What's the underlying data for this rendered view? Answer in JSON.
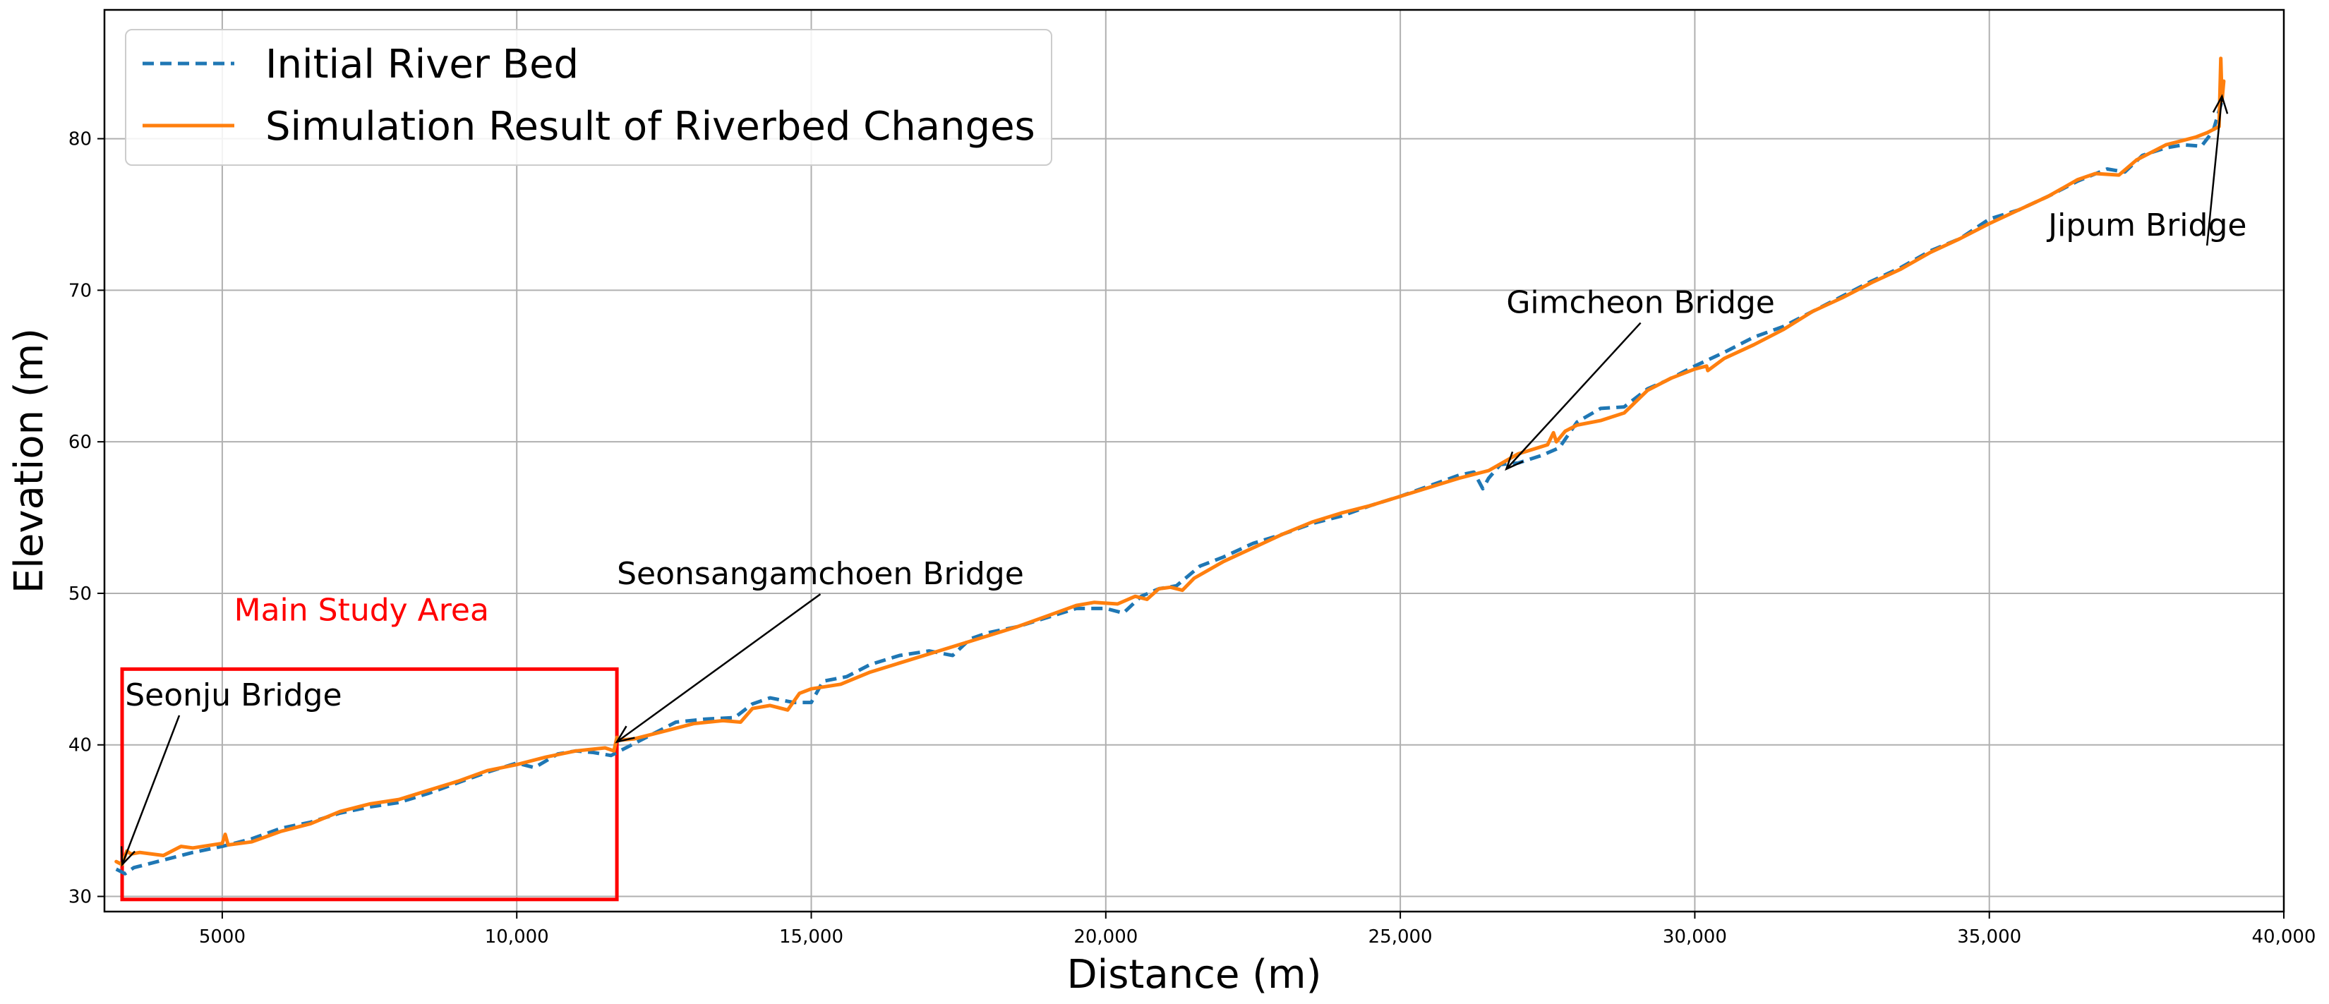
{
  "chart_data": {
    "type": "line",
    "title": "",
    "xlabel": "Distance (m)",
    "ylabel": "Elevation (m)",
    "xlim": [
      3000,
      40000
    ],
    "ylim": [
      29,
      88.5
    ],
    "xticks": [
      5000,
      10000,
      15000,
      20000,
      25000,
      30000,
      35000,
      40000
    ],
    "xtick_labels": [
      "5000",
      "10,000",
      "15,000",
      "20,000",
      "25,000",
      "30,000",
      "35,000",
      "40,000"
    ],
    "yticks": [
      30,
      40,
      50,
      60,
      70,
      80
    ],
    "ytick_labels": [
      "30",
      "40",
      "50",
      "60",
      "70",
      "80"
    ],
    "grid": true,
    "legend_position": "top-left",
    "series": [
      {
        "name": "Initial River Bed",
        "color": "#1f77b4",
        "style": "dashed",
        "x": [
          3200,
          3350,
          3500,
          4000,
          4500,
          5000,
          5500,
          6000,
          6500,
          7000,
          7500,
          8000,
          8500,
          9000,
          9500,
          10000,
          10300,
          10700,
          11000,
          11300,
          11600,
          11800,
          12200,
          12700,
          13200,
          13700,
          14000,
          14300,
          14700,
          15000,
          15200,
          15600,
          16000,
          16500,
          17000,
          17400,
          17700,
          18000,
          18500,
          19000,
          19500,
          20000,
          20300,
          20600,
          20900,
          21200,
          21600,
          22000,
          22500,
          23000,
          23500,
          24000,
          24500,
          25000,
          25500,
          26000,
          26250,
          26400,
          26500,
          26700,
          27000,
          27400,
          27700,
          28000,
          28400,
          28800,
          29200,
          29500,
          30000,
          30500,
          31000,
          31500,
          32000,
          32500,
          33000,
          33500,
          34000,
          34500,
          35000,
          35500,
          36000,
          36500,
          37000,
          37300,
          37600,
          38000,
          38300,
          38600,
          38800,
          38950
        ],
        "y": [
          31.8,
          31.5,
          31.9,
          32.4,
          32.9,
          33.3,
          33.8,
          34.5,
          34.9,
          35.5,
          35.9,
          36.2,
          36.8,
          37.5,
          38.2,
          38.8,
          38.5,
          39.4,
          39.6,
          39.5,
          39.3,
          39.7,
          40.5,
          41.5,
          41.7,
          41.8,
          42.7,
          43.1,
          42.8,
          42.8,
          44.2,
          44.5,
          45.3,
          45.9,
          46.2,
          45.9,
          47.0,
          47.4,
          47.8,
          48.4,
          49.0,
          49.0,
          48.7,
          49.8,
          50.3,
          50.5,
          51.8,
          52.4,
          53.3,
          53.9,
          54.6,
          55.1,
          55.8,
          56.4,
          57.1,
          57.8,
          58.0,
          56.9,
          57.6,
          58.5,
          58.6,
          59.1,
          59.6,
          61.3,
          62.2,
          62.3,
          63.5,
          64.0,
          65.0,
          65.9,
          66.9,
          67.6,
          68.6,
          69.6,
          70.6,
          71.5,
          72.6,
          73.4,
          74.7,
          75.3,
          76.2,
          77.2,
          78.0,
          77.8,
          78.9,
          79.4,
          79.6,
          79.5,
          80.5,
          82.5
        ]
      },
      {
        "name": "Simulation Result of Riverbed Changes",
        "color": "#ff7f0e",
        "style": "solid",
        "x": [
          3200,
          3300,
          3380,
          3450,
          3600,
          4000,
          4300,
          4500,
          5000,
          5050,
          5100,
          5500,
          6000,
          6500,
          7000,
          7500,
          8000,
          8500,
          9000,
          9500,
          10000,
          10500,
          11000,
          11500,
          11650,
          11700,
          11720,
          12000,
          12500,
          13000,
          13500,
          13800,
          14000,
          14300,
          14600,
          14800,
          15000,
          15500,
          16000,
          16500,
          17000,
          17500,
          18000,
          18500,
          19000,
          19500,
          19800,
          20200,
          20500,
          20700,
          20900,
          21100,
          21300,
          21500,
          22000,
          22500,
          23000,
          23500,
          24000,
          24500,
          25000,
          25500,
          26000,
          26500,
          27000,
          27500,
          27600,
          27650,
          27800,
          28000,
          28400,
          28800,
          29200,
          29600,
          30000,
          30200,
          30220,
          30500,
          31000,
          31500,
          32000,
          32500,
          33000,
          33500,
          34000,
          34500,
          35000,
          35500,
          36000,
          36500,
          36800,
          37200,
          37500,
          38000,
          38200,
          38500,
          38700,
          38900,
          38930,
          38950,
          38980
        ],
        "y": [
          32.3,
          32.1,
          33.0,
          32.8,
          32.9,
          32.7,
          33.3,
          33.2,
          33.5,
          34.1,
          33.4,
          33.6,
          34.3,
          34.8,
          35.6,
          36.1,
          36.4,
          37.0,
          37.6,
          38.3,
          38.7,
          39.2,
          39.6,
          39.8,
          39.6,
          40.5,
          40.3,
          40.4,
          40.9,
          41.4,
          41.6,
          41.5,
          42.4,
          42.6,
          42.3,
          43.4,
          43.7,
          44.0,
          44.8,
          45.4,
          46.0,
          46.6,
          47.2,
          47.8,
          48.5,
          49.2,
          49.4,
          49.3,
          49.8,
          49.6,
          50.3,
          50.4,
          50.2,
          51.0,
          52.1,
          53.0,
          53.9,
          54.7,
          55.3,
          55.8,
          56.4,
          57.0,
          57.6,
          58.1,
          59.2,
          59.8,
          60.6,
          60.0,
          60.7,
          61.1,
          61.4,
          61.9,
          63.4,
          64.2,
          64.8,
          65.0,
          64.7,
          65.5,
          66.4,
          67.4,
          68.6,
          69.5,
          70.5,
          71.4,
          72.5,
          73.4,
          74.4,
          75.3,
          76.2,
          77.3,
          77.7,
          77.6,
          78.6,
          79.6,
          79.8,
          80.1,
          80.4,
          80.8,
          85.3,
          82.5,
          83.8
        ]
      }
    ],
    "annotations": [
      {
        "text": "Seonju Bridge",
        "x": 3300,
        "y": 32.1,
        "text_x": 3350,
        "text_y": 42.6
      },
      {
        "text": "Seonsangamchoen Bridge",
        "x": 11700,
        "y": 40.2,
        "text_x": 11700,
        "text_y": 50.6
      },
      {
        "text": "Gimcheon Bridge",
        "x": 26800,
        "y": 58.2,
        "text_x": 26800,
        "text_y": 68.5
      },
      {
        "text": "Jipum Bridge",
        "x": 38950,
        "y": 82.8,
        "text_x": 36000,
        "text_y": 73.6
      }
    ],
    "region": {
      "label": "Main Study Area",
      "color": "#ff0000",
      "x0": 3300,
      "x1": 11700,
      "y0": 29.8,
      "y1": 45.0,
      "label_x": 5200,
      "label_y": 48.2
    }
  }
}
